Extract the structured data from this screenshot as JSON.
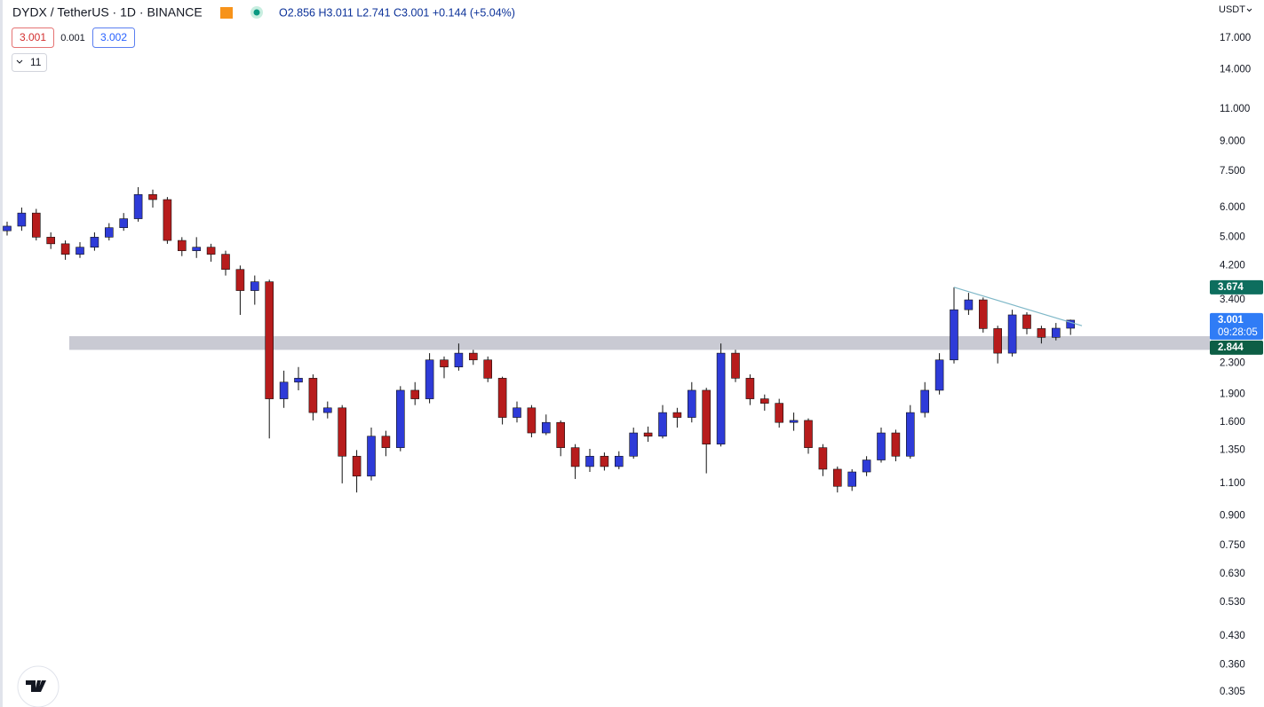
{
  "chart_data": {
    "type": "candlestick",
    "title": "DYDX / TetherUS · 1D · BINANCE",
    "ohlc_label": "O2.856 H3.011 L2.741 C3.001 +0.144 (+5.04%)",
    "sell_price": "3.001",
    "spread": "0.001",
    "buy_price": "3.002",
    "indicators_count": "11",
    "currency": "USDT",
    "log_scale": true,
    "grid": false,
    "up_color": "#2e3bd8",
    "down_color": "#b71c1c",
    "wick_color": "#111111",
    "open": [
      5.2,
      5.35,
      5.8,
      5.0,
      4.8,
      4.5,
      4.7,
      5.0,
      5.3,
      5.6,
      6.5,
      6.3,
      4.9,
      4.6,
      4.7,
      4.5,
      4.1,
      3.6,
      3.8,
      1.85,
      2.05,
      2.1,
      1.7,
      1.75,
      1.3,
      1.15,
      1.47,
      1.37,
      1.95,
      1.85,
      2.35,
      2.25,
      2.45,
      2.35,
      2.1,
      1.65,
      1.75,
      1.5,
      1.6,
      1.37,
      1.22,
      1.3,
      1.22,
      1.3,
      1.5,
      1.47,
      1.7,
      1.65,
      1.95,
      1.4,
      2.45,
      2.1,
      1.85,
      1.8,
      1.6,
      1.62,
      1.37,
      1.2,
      1.08,
      1.18,
      1.27,
      1.5,
      1.3,
      1.7,
      1.95,
      2.35,
      3.2,
      3.4,
      2.85,
      2.45,
      3.1,
      2.85,
      2.7,
      2.856
    ],
    "high": [
      5.5,
      6.0,
      5.95,
      5.15,
      4.9,
      4.85,
      5.15,
      5.45,
      5.8,
      6.8,
      6.7,
      6.4,
      5.0,
      5.0,
      4.8,
      4.6,
      4.2,
      3.95,
      3.85,
      2.2,
      2.25,
      2.15,
      1.82,
      1.78,
      1.35,
      1.55,
      1.52,
      2.0,
      2.05,
      2.45,
      2.4,
      2.6,
      2.5,
      2.4,
      2.12,
      1.82,
      1.78,
      1.68,
      1.62,
      1.4,
      1.36,
      1.33,
      1.34,
      1.55,
      1.56,
      1.78,
      1.75,
      2.05,
      1.98,
      2.6,
      2.5,
      2.15,
      1.9,
      1.85,
      1.7,
      1.64,
      1.4,
      1.22,
      1.2,
      1.3,
      1.55,
      1.53,
      1.78,
      2.05,
      2.45,
      3.674,
      3.55,
      3.45,
      2.9,
      3.2,
      3.15,
      2.9,
      2.95,
      3.011
    ],
    "low": [
      5.05,
      5.2,
      4.9,
      4.65,
      4.35,
      4.4,
      4.6,
      4.9,
      5.2,
      5.5,
      6.0,
      4.8,
      4.45,
      4.4,
      4.3,
      3.95,
      3.1,
      3.3,
      1.45,
      1.75,
      1.95,
      1.62,
      1.64,
      1.1,
      1.04,
      1.12,
      1.3,
      1.34,
      1.78,
      1.8,
      2.1,
      2.2,
      2.28,
      2.05,
      1.58,
      1.6,
      1.46,
      1.48,
      1.3,
      1.13,
      1.18,
      1.19,
      1.2,
      1.28,
      1.42,
      1.45,
      1.55,
      1.6,
      1.17,
      1.38,
      2.05,
      1.78,
      1.72,
      1.55,
      1.52,
      1.32,
      1.15,
      1.04,
      1.05,
      1.15,
      1.25,
      1.26,
      1.28,
      1.65,
      1.9,
      2.3,
      3.1,
      2.78,
      2.3,
      2.4,
      2.75,
      2.6,
      2.65,
      2.741
    ],
    "close": [
      5.35,
      5.8,
      5.0,
      4.8,
      4.5,
      4.7,
      5.0,
      5.3,
      5.6,
      6.5,
      6.3,
      4.9,
      4.6,
      4.7,
      4.5,
      4.1,
      3.6,
      3.8,
      1.85,
      2.05,
      2.1,
      1.7,
      1.75,
      1.3,
      1.15,
      1.47,
      1.37,
      1.95,
      1.85,
      2.35,
      2.25,
      2.45,
      2.35,
      2.1,
      1.65,
      1.75,
      1.5,
      1.6,
      1.37,
      1.22,
      1.3,
      1.22,
      1.3,
      1.5,
      1.47,
      1.7,
      1.65,
      1.95,
      1.4,
      2.45,
      2.1,
      1.85,
      1.8,
      1.6,
      1.62,
      1.37,
      1.2,
      1.08,
      1.18,
      1.27,
      1.5,
      1.3,
      1.7,
      1.95,
      2.35,
      3.2,
      3.4,
      2.85,
      2.45,
      3.1,
      2.85,
      2.7,
      2.856,
      3.001
    ],
    "ylim": [
      0.278,
      21.5
    ],
    "yticks": [
      {
        "value": 17,
        "label": "17.000"
      },
      {
        "value": 14,
        "label": "14.000"
      },
      {
        "value": 11,
        "label": "11.000"
      },
      {
        "value": 9,
        "label": "9.000"
      },
      {
        "value": 7.5,
        "label": "7.500"
      },
      {
        "value": 6,
        "label": "6.000"
      },
      {
        "value": 5,
        "label": "5.000"
      },
      {
        "value": 4.2,
        "label": "4.200"
      },
      {
        "value": 3.4,
        "label": "3.400"
      },
      {
        "value": 2.3,
        "label": "2.300"
      },
      {
        "value": 1.9,
        "label": "1.900"
      },
      {
        "value": 1.6,
        "label": "1.600"
      },
      {
        "value": 1.35,
        "label": "1.350"
      },
      {
        "value": 1.1,
        "label": "1.100"
      },
      {
        "value": 0.9,
        "label": "0.900"
      },
      {
        "value": 0.75,
        "label": "0.750"
      },
      {
        "value": 0.63,
        "label": "0.630"
      },
      {
        "value": 0.53,
        "label": "0.530"
      },
      {
        "value": 0.43,
        "label": "0.430"
      },
      {
        "value": 0.36,
        "label": "0.360"
      },
      {
        "value": 0.305,
        "label": "0.305"
      }
    ],
    "price_tags": [
      {
        "value": 3.674,
        "label": "3.674",
        "color": "#0d6e5e"
      },
      {
        "value": 3.001,
        "label": "3.001",
        "sublabel": "09:28:05",
        "color": "#2f7cf6"
      },
      {
        "value": 2.844,
        "label": "2.844",
        "color": "#0d5e45"
      }
    ],
    "zone": {
      "low": 2.5,
      "high": 2.72,
      "color": "#c9cad3"
    },
    "trendline": {
      "start": 3.674,
      "end": 2.9,
      "color": "#7fb8c8"
    }
  }
}
